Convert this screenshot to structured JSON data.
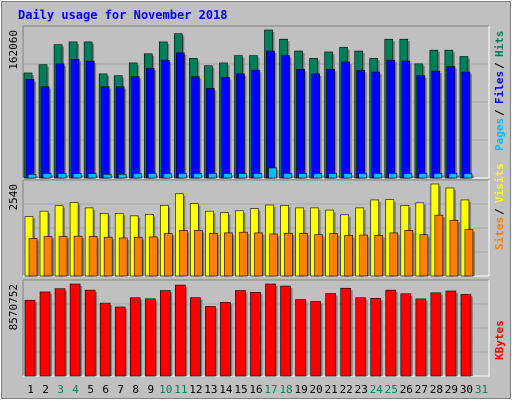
{
  "chart_data": [
    {
      "type": "bar",
      "title": "Daily usage for November 2018",
      "ylabel_top": "162060",
      "legend": [
        {
          "name": "Pages",
          "color": "#00c0ff"
        },
        {
          "name": "Files",
          "color": "#0000ff"
        },
        {
          "name": "Hits",
          "color": "#00805a"
        }
      ],
      "x": [
        "1",
        "2",
        "3",
        "4",
        "5",
        "6",
        "7",
        "8",
        "9",
        "10",
        "11",
        "12",
        "13",
        "14",
        "15",
        "16",
        "17",
        "18",
        "19",
        "20",
        "21",
        "22",
        "23",
        "24",
        "25",
        "26",
        "27",
        "28",
        "29",
        "30",
        "31"
      ],
      "weekend_days": [
        "3",
        "4",
        "10",
        "11",
        "17",
        "18",
        "24",
        "25",
        "31"
      ],
      "ylim": [
        0,
        162060
      ],
      "series": [
        {
          "name": "Hits",
          "values": [
            115000,
            124000,
            146000,
            149000,
            149000,
            114000,
            112000,
            126000,
            136000,
            149000,
            158000,
            131000,
            123000,
            126000,
            134000,
            134000,
            162060,
            152000,
            139000,
            131000,
            138000,
            143000,
            139000,
            131000,
            152000,
            152000,
            125000,
            140000,
            140000,
            133000,
            0
          ]
        },
        {
          "name": "Files",
          "values": [
            108000,
            100000,
            125000,
            130000,
            128000,
            100000,
            100000,
            111000,
            120000,
            129000,
            137000,
            111000,
            98000,
            110000,
            114000,
            118000,
            139000,
            134000,
            119000,
            114000,
            119000,
            127000,
            118000,
            116000,
            129000,
            128000,
            112000,
            117000,
            122000,
            116000,
            0
          ]
        },
        {
          "name": "Pages",
          "values": [
            4000,
            5000,
            5000,
            5000,
            5000,
            4000,
            4000,
            5000,
            5000,
            5000,
            5000,
            5000,
            5000,
            5000,
            5000,
            5000,
            11000,
            5000,
            5000,
            5000,
            5000,
            5000,
            5000,
            5000,
            5000,
            5000,
            5000,
            5000,
            5000,
            5000,
            0
          ]
        }
      ]
    },
    {
      "type": "bar",
      "ylabel_top": "2540",
      "legend": [
        {
          "name": "Sites",
          "color": "#ff8000"
        },
        {
          "name": "Visits",
          "color": "#ffff00"
        }
      ],
      "x": [
        "1",
        "2",
        "3",
        "4",
        "5",
        "6",
        "7",
        "8",
        "9",
        "10",
        "11",
        "12",
        "13",
        "14",
        "15",
        "16",
        "17",
        "18",
        "19",
        "20",
        "21",
        "22",
        "23",
        "24",
        "25",
        "26",
        "27",
        "28",
        "29",
        "30",
        "31"
      ],
      "ylim": [
        0,
        2540
      ],
      "series": [
        {
          "name": "Visits",
          "values": [
            1640,
            1790,
            1940,
            2030,
            1880,
            1730,
            1730,
            1660,
            1700,
            1950,
            2270,
            2000,
            1790,
            1750,
            1800,
            1860,
            1960,
            1950,
            1880,
            1880,
            1820,
            1690,
            1880,
            2100,
            2110,
            1950,
            2020,
            2540,
            2430,
            2100,
            0
          ]
        },
        {
          "name": "Sites",
          "values": [
            1040,
            1090,
            1090,
            1100,
            1090,
            1070,
            1050,
            1070,
            1080,
            1170,
            1260,
            1260,
            1180,
            1190,
            1210,
            1190,
            1160,
            1180,
            1180,
            1140,
            1170,
            1120,
            1130,
            1120,
            1190,
            1260,
            1140,
            1680,
            1540,
            1280,
            0
          ]
        }
      ]
    },
    {
      "type": "bar",
      "ylabel_top": "8570752",
      "legend": [
        {
          "name": "KBytes",
          "color": "#ff0000"
        }
      ],
      "x": [
        "1",
        "2",
        "3",
        "4",
        "5",
        "6",
        "7",
        "8",
        "9",
        "10",
        "11",
        "12",
        "13",
        "14",
        "15",
        "16",
        "17",
        "18",
        "19",
        "20",
        "21",
        "22",
        "23",
        "24",
        "25",
        "26",
        "27",
        "28",
        "29",
        "30",
        "31"
      ],
      "ylim": [
        0,
        8570752
      ],
      "series": [
        {
          "name": "KBytes",
          "values": [
            7060000,
            7830000,
            8130000,
            8570752,
            8000000,
            6790000,
            6430000,
            7290000,
            7190000,
            7960000,
            8470000,
            7300000,
            6480000,
            6860000,
            7960000,
            7800000,
            8570752,
            8380000,
            7120000,
            6940000,
            7680000,
            8180000,
            7290000,
            7240000,
            8000000,
            7660000,
            7180000,
            7750000,
            7920000,
            7600000,
            0
          ]
        }
      ]
    }
  ]
}
